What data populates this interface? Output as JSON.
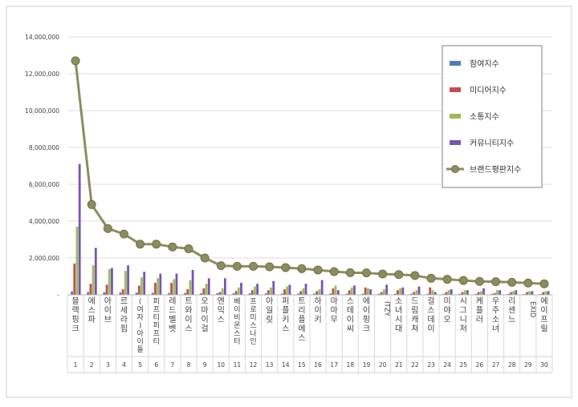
{
  "chart_data": {
    "type": "bar",
    "categories": [
      "블랙핑크",
      "에스파",
      "아이브",
      "르세라핌",
      "(여자)아이들",
      "피프티피프티",
      "레드벨벳",
      "트와이스",
      "오마이걸",
      "엔믹스",
      "베이비몬스터",
      "프로미스나인",
      "아일릿",
      "퍼플키스",
      "트리플에스",
      "하이키",
      "마마무",
      "스테이씨",
      "에이핑크",
      "ITZY",
      "소녀시대",
      "드림캐쳐",
      "걸스데이",
      "미야오",
      "시그니처",
      "케플러",
      "우주소녀",
      "리센느",
      "EXID",
      "에이프릴"
    ],
    "ranks": [
      "1",
      "2",
      "3",
      "4",
      "5",
      "6",
      "7",
      "8",
      "9",
      "10",
      "11",
      "12",
      "13",
      "14",
      "15",
      "16",
      "17",
      "18",
      "19",
      "20",
      "21",
      "22",
      "23",
      "24",
      "25",
      "26",
      "27",
      "28",
      "29",
      "30"
    ],
    "ylim": [
      0,
      14000000
    ],
    "yticks": [
      0,
      2000000,
      4000000,
      6000000,
      8000000,
      10000000,
      12000000,
      14000000
    ],
    "ytick_labels": [
      "-",
      "2,000,000",
      "4,000,000",
      "6,000,000",
      "8,000,000",
      "10,000,000",
      "12,000,000",
      "14,000,000"
    ],
    "legend_position": "top-right",
    "grid": true,
    "series": [
      {
        "name": "참여지수",
        "kind": "bar",
        "color": "#4a7ebb",
        "values": [
          180000,
          150000,
          140000,
          130000,
          120000,
          110000,
          100000,
          100000,
          90000,
          90000,
          80000,
          80000,
          80000,
          70000,
          70000,
          70000,
          70000,
          60000,
          60000,
          60000,
          60000,
          60000,
          50000,
          50000,
          50000,
          50000,
          50000,
          50000,
          40000,
          40000
        ]
      },
      {
        "name": "미디어지수",
        "kind": "bar",
        "color": "#c0504d",
        "values": [
          1700000,
          600000,
          550000,
          300000,
          500000,
          650000,
          650000,
          300000,
          350000,
          150000,
          200000,
          250000,
          250000,
          300000,
          200000,
          200000,
          350000,
          250000,
          400000,
          150000,
          250000,
          150000,
          400000,
          150000,
          150000,
          150000,
          100000,
          150000,
          150000,
          150000
        ]
      },
      {
        "name": "소통지수",
        "kind": "bar",
        "color": "#9bbb59",
        "values": [
          3700000,
          1600000,
          1400000,
          1300000,
          950000,
          900000,
          850000,
          800000,
          600000,
          350000,
          400000,
          450000,
          400000,
          450000,
          350000,
          300000,
          500000,
          400000,
          350000,
          300000,
          350000,
          250000,
          250000,
          250000,
          250000,
          200000,
          250000,
          200000,
          200000,
          200000
        ]
      },
      {
        "name": "커뮤니티지수",
        "kind": "bar",
        "color": "#7755b0",
        "values": [
          7100000,
          2550000,
          1450000,
          1600000,
          1250000,
          1150000,
          1150000,
          1350000,
          900000,
          900000,
          650000,
          600000,
          750000,
          550000,
          600000,
          800000,
          250000,
          500000,
          300000,
          550000,
          400000,
          450000,
          150000,
          300000,
          250000,
          350000,
          250000,
          250000,
          200000,
          200000
        ]
      },
      {
        "name": "브랜드평판지수",
        "kind": "line",
        "color": "#8b8e5c",
        "values": [
          12700000,
          4900000,
          3600000,
          3300000,
          2750000,
          2750000,
          2600000,
          2500000,
          2000000,
          1580000,
          1550000,
          1550000,
          1520000,
          1480000,
          1420000,
          1350000,
          1260000,
          1200000,
          1190000,
          1130000,
          1100000,
          1050000,
          900000,
          840000,
          780000,
          730000,
          710000,
          680000,
          640000,
          600000
        ]
      }
    ]
  }
}
